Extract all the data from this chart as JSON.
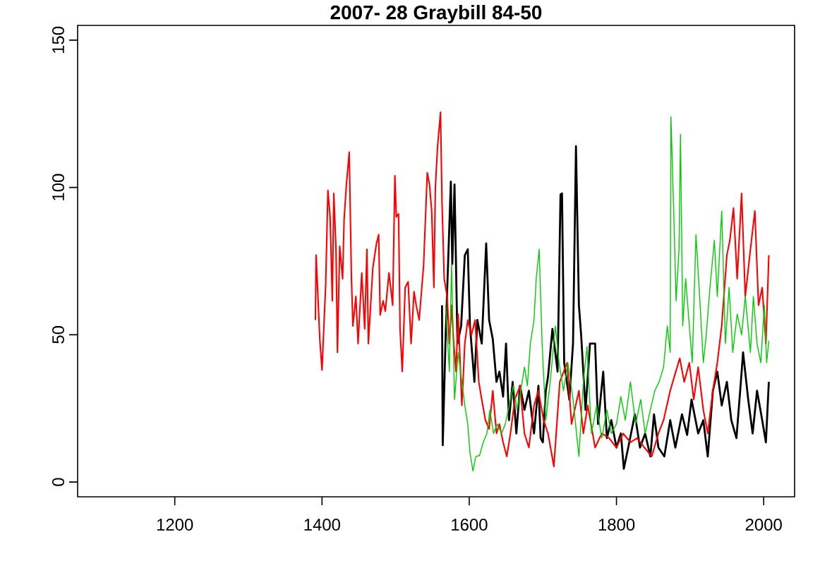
{
  "chart_data": {
    "type": "line",
    "title": "2007- 28     Graybill  84-50",
    "xlim": [
      1068,
      2042
    ],
    "ylim": [
      -5,
      155
    ],
    "xticks": [
      1200,
      1400,
      1600,
      1800,
      2000
    ],
    "yticks": [
      0,
      50,
      100,
      150
    ],
    "grid": false,
    "marker": "none",
    "line_style": "solid",
    "series": [
      {
        "color": "#000000",
        "x": [
          1563,
          1564,
          1568,
          1575,
          1577,
          1580,
          1584,
          1589,
          1594,
          1598,
          1601,
          1607,
          1611,
          1617,
          1623,
          1627,
          1632,
          1637,
          1641,
          1646,
          1650,
          1654,
          1659,
          1664,
          1669,
          1675,
          1681,
          1688,
          1694,
          1697,
          1700,
          1704,
          1707,
          1713,
          1720,
          1724,
          1726,
          1729,
          1736,
          1741,
          1745,
          1749,
          1752,
          1758,
          1764,
          1771,
          1775,
          1782,
          1787,
          1793,
          1800,
          1806,
          1810,
          1816,
          1825,
          1832,
          1839,
          1846,
          1851,
          1857,
          1865,
          1873,
          1880,
          1889,
          1896,
          1902,
          1911,
          1918,
          1924,
          1931,
          1937,
          1943,
          1950,
          1956,
          1963,
          1969,
          1972,
          1979,
          1985,
          1991,
          1998,
          2003,
          2007
        ],
        "values": [
          60,
          12.5,
          50,
          102,
          74,
          101,
          47,
          53,
          77,
          79,
          53,
          34,
          55,
          47,
          81,
          55,
          48.5,
          34,
          37.5,
          29,
          47,
          21,
          34,
          16.5,
          32.7,
          24.5,
          31,
          16.5,
          32.7,
          14.9,
          13.5,
          31,
          35.7,
          52,
          37.5,
          97.6,
          98,
          40.5,
          28,
          47,
          114,
          60,
          50,
          24.5,
          47,
          47,
          19.7,
          37.5,
          14.9,
          21,
          11.7,
          16.5,
          4.5,
          11.7,
          23,
          11.7,
          16.5,
          8.7,
          23,
          11.7,
          8.7,
          21,
          11.7,
          23,
          16,
          28,
          16.5,
          21,
          8.7,
          31,
          37.5,
          26,
          34,
          21,
          14.9,
          34,
          44,
          28,
          16.5,
          31,
          21,
          13.5,
          34
        ]
      },
      {
        "color": "#ff0000",
        "x": [
          1391,
          1392,
          1397,
          1400,
          1405,
          1408,
          1411,
          1414,
          1416,
          1419,
          1421,
          1424,
          1428,
          1430,
          1433,
          1437,
          1440,
          1442,
          1446,
          1449,
          1454,
          1458,
          1461,
          1463,
          1469,
          1474,
          1477,
          1479,
          1483,
          1486,
          1491,
          1496,
          1499,
          1501,
          1504,
          1506,
          1509,
          1513,
          1517,
          1521,
          1525,
          1528,
          1532,
          1538,
          1543,
          1546,
          1549,
          1552,
          1554,
          1557,
          1561,
          1563,
          1566,
          1570,
          1573,
          1576,
          1579,
          1582,
          1585,
          1590,
          1594,
          1598,
          1603,
          1608,
          1613,
          1617,
          1622,
          1627,
          1632,
          1637,
          1641,
          1646,
          1651,
          1656,
          1662,
          1669,
          1675,
          1681,
          1688,
          1694,
          1701,
          1707,
          1715,
          1723,
          1733,
          1739,
          1749,
          1755,
          1761,
          1771,
          1780,
          1790,
          1800,
          1809,
          1819,
          1828,
          1838,
          1848,
          1857,
          1864,
          1873,
          1880,
          1886,
          1892,
          1899,
          1905,
          1911,
          1918,
          1924,
          1931,
          1937,
          1943,
          1950,
          1954,
          1959,
          1964,
          1970,
          1975,
          1982,
          1988,
          1993,
          1998,
          2003,
          2007
        ],
        "values": [
          55,
          77,
          48.5,
          38,
          67,
          99,
          90,
          61.5,
          98,
          79,
          44,
          80,
          69,
          89,
          100.6,
          112,
          69,
          53,
          63,
          47,
          71,
          52,
          79,
          47,
          72.6,
          81,
          84,
          56.7,
          61.5,
          58,
          71,
          60,
          104,
          90,
          91,
          52,
          37.5,
          66,
          68,
          47,
          64.6,
          60,
          55,
          73.5,
          105,
          101,
          92,
          66,
          100,
          114,
          125.5,
          95,
          69,
          63,
          47,
          60,
          47,
          37.5,
          57,
          26,
          47,
          55,
          50,
          55,
          34,
          28,
          21,
          18,
          31,
          16.5,
          19.7,
          13.5,
          8.7,
          16.5,
          28,
          32.7,
          16.5,
          11.7,
          26,
          31,
          21,
          16.5,
          5.3,
          34,
          40.5,
          19.7,
          31,
          16.5,
          26,
          11.7,
          16.5,
          14.9,
          11.7,
          16.5,
          13.5,
          14.9,
          11.7,
          8.7,
          16.5,
          21,
          31,
          37,
          42,
          34,
          40.5,
          28,
          39,
          24.5,
          16.5,
          31,
          40.5,
          53,
          77,
          82,
          93,
          69,
          98,
          63,
          79,
          92,
          60,
          66,
          47,
          77
        ]
      },
      {
        "color": "#00cd00",
        "x": [
          1568,
          1573,
          1576,
          1580,
          1585,
          1590,
          1594,
          1598,
          1601,
          1605,
          1609,
          1614,
          1619,
          1624,
          1628,
          1633,
          1638,
          1644,
          1649,
          1656,
          1660,
          1665,
          1670,
          1675,
          1679,
          1683,
          1688,
          1691,
          1695,
          1699,
          1704,
          1710,
          1717,
          1722,
          1728,
          1734,
          1741,
          1749,
          1755,
          1760,
          1766,
          1773,
          1780,
          1787,
          1793,
          1800,
          1806,
          1812,
          1819,
          1826,
          1833,
          1839,
          1846,
          1852,
          1858,
          1864,
          1869,
          1873,
          1874,
          1878,
          1881,
          1885,
          1887,
          1890,
          1894,
          1899,
          1903,
          1908,
          1913,
          1918,
          1922,
          1927,
          1933,
          1937,
          1943,
          1948,
          1953,
          1958,
          1964,
          1970,
          1975,
          1982,
          1986,
          1991,
          1996,
          2001,
          2004,
          2007
        ],
        "values": [
          60,
          37.5,
          74,
          28,
          44,
          34,
          26,
          19.7,
          10,
          3.8,
          8.7,
          9,
          13.5,
          16.5,
          24.5,
          16.5,
          19.7,
          16.5,
          19.7,
          28,
          32.7,
          24.5,
          31,
          39,
          32.7,
          47,
          55,
          69,
          79,
          47,
          21,
          34,
          53,
          40.5,
          31,
          40.5,
          28,
          8.7,
          34,
          46,
          16.5,
          26,
          14.9,
          24.5,
          16.5,
          19.7,
          29,
          21,
          34,
          19.7,
          28,
          16.5,
          24.5,
          31,
          34,
          39,
          53,
          44,
          124,
          90,
          61.5,
          79,
          118,
          53,
          69,
          53,
          40.5,
          84,
          63,
          40.5,
          50,
          66,
          82,
          63,
          92,
          47,
          66,
          44,
          57,
          50,
          63,
          44,
          63,
          47,
          40.5,
          60,
          40.5,
          48
        ]
      }
    ]
  }
}
